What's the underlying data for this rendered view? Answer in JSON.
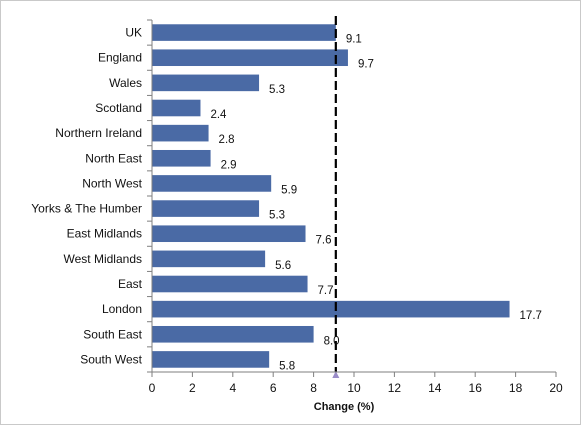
{
  "chart_data": {
    "type": "bar",
    "orientation": "horizontal",
    "title": "",
    "xlabel": "Change (%)",
    "ylabel": "",
    "xlim": [
      0,
      20
    ],
    "xticks": [
      0,
      2,
      4,
      6,
      8,
      10,
      12,
      14,
      16,
      18,
      20
    ],
    "grid": false,
    "legend": "none",
    "categories": [
      "UK",
      "England",
      "Wales",
      "Scotland",
      "Northern Ireland",
      "North East",
      "North West",
      "Yorks & The Humber",
      "East Midlands",
      "West Midlands",
      "East",
      "London",
      "South East",
      "South West"
    ],
    "values": [
      9.1,
      9.7,
      5.3,
      2.4,
      2.8,
      2.9,
      5.9,
      5.3,
      7.6,
      5.6,
      7.7,
      17.7,
      8.0,
      5.8
    ],
    "value_labels": [
      "9.1",
      "9.7",
      "5.3",
      "2.4",
      "2.8",
      "2.9",
      "5.9",
      "5.3",
      "7.6",
      "5.6",
      "7.7",
      "17.7",
      "8.0",
      "5.8"
    ],
    "reference_line": {
      "value": 9.1,
      "style": "dashed"
    },
    "bar_color": "#4a6aa5",
    "reference_color": "#000000",
    "marker_color": "#9a8cc8"
  }
}
